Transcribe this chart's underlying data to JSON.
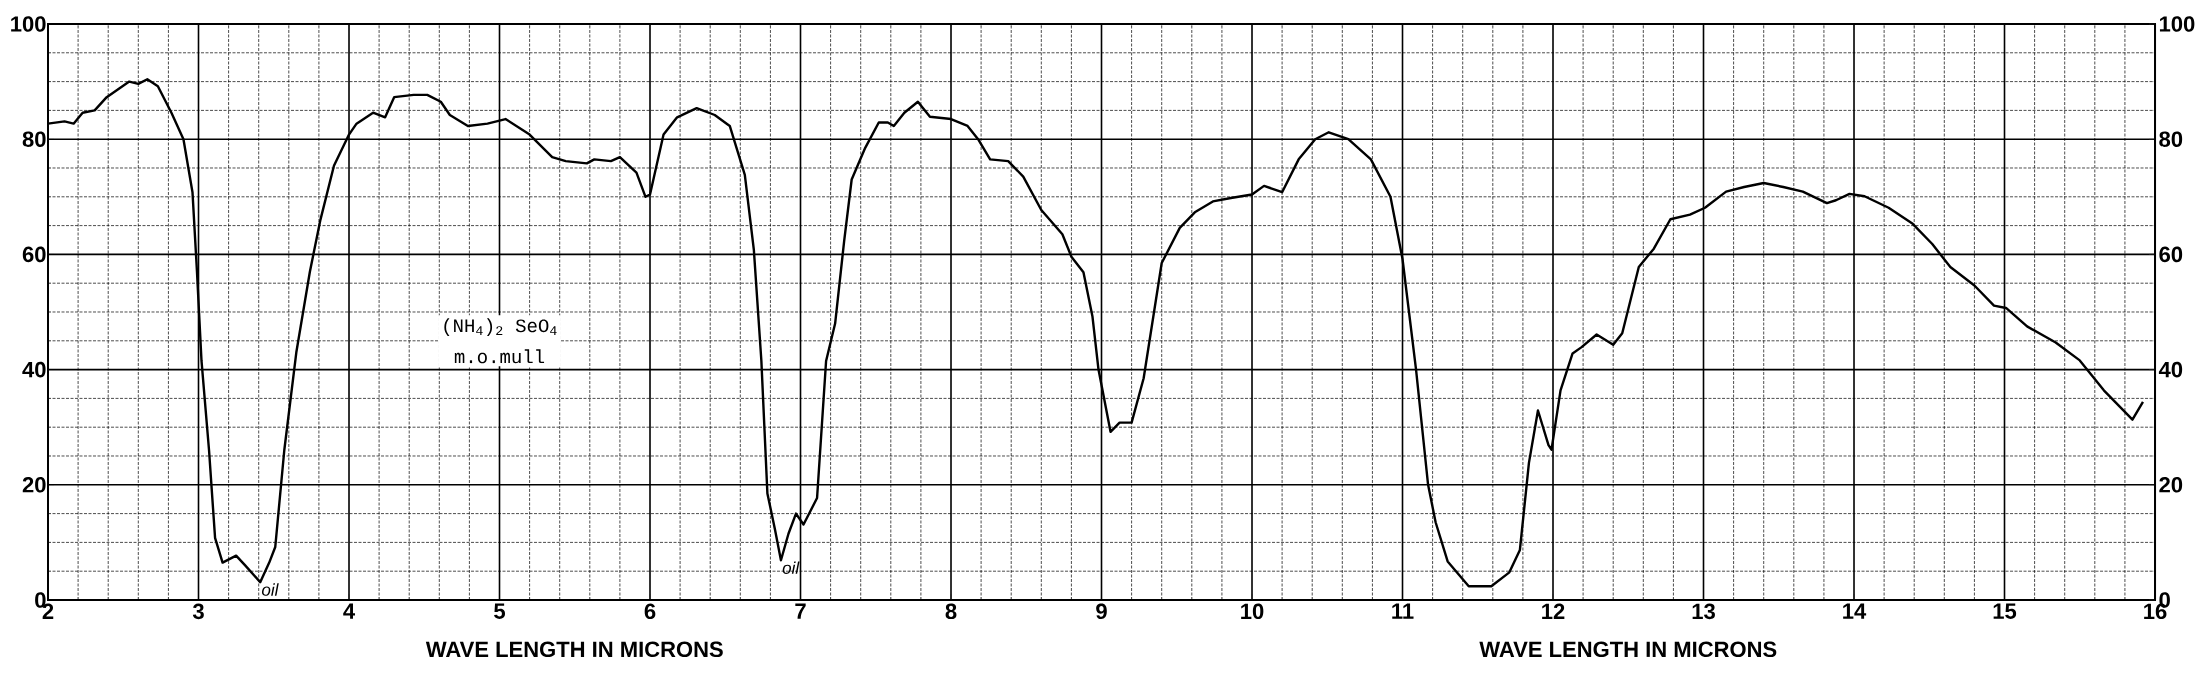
{
  "chart_data": {
    "type": "line",
    "xlabel": "WAVE LENGTH IN MICRONS",
    "annotations": [
      "(NH$_{4}$)$_{2}$ SeO$_{4}$",
      "m.o.mull",
      {
        "text": "oil",
        "x": 3.41,
        "y": 3.1
      },
      {
        "text": "oil",
        "x": 6.87,
        "y": 6.9
      }
    ],
    "series": [
      {
        "color": "#000000",
        "x": [
          2.0,
          2.11,
          2.17,
          2.23,
          2.31,
          2.39,
          2.54,
          2.6,
          2.66,
          2.73,
          2.82,
          2.9,
          2.96,
          2.99,
          3.02,
          3.07,
          3.11,
          3.16,
          3.25,
          3.31,
          3.41,
          3.47,
          3.51,
          3.57,
          3.65,
          3.74,
          3.81,
          3.9,
          4.0,
          4.05,
          4.16,
          4.24,
          4.3,
          4.43,
          4.52,
          4.61,
          4.67,
          4.79,
          4.92,
          5.04,
          5.2,
          5.35,
          5.44,
          5.58,
          5.63,
          5.74,
          5.8,
          5.91,
          5.97,
          6.0,
          6.09,
          6.18,
          6.31,
          6.43,
          6.53,
          6.63,
          6.69,
          6.74,
          6.78,
          6.83,
          6.87,
          6.92,
          6.97,
          7.02,
          7.11,
          7.17,
          7.23,
          7.29,
          7.34,
          7.43,
          7.52,
          7.58,
          7.62,
          7.69,
          7.78,
          7.86,
          8.0,
          8.11,
          8.18,
          8.26,
          8.38,
          8.48,
          8.6,
          8.74,
          8.8,
          8.88,
          8.94,
          8.98,
          9.06,
          9.12,
          9.2,
          9.28,
          9.4,
          9.52,
          9.62,
          9.74,
          9.86,
          10.0,
          10.08,
          10.2,
          10.31,
          10.42,
          10.51,
          10.64,
          10.79,
          10.92,
          11.0,
          11.09,
          11.17,
          11.22,
          11.3,
          11.44,
          11.59,
          11.71,
          11.78,
          11.84,
          11.9,
          11.97,
          11.99,
          12.05,
          12.13,
          12.19,
          12.29,
          12.4,
          12.46,
          12.57,
          12.67,
          12.78,
          12.91,
          13.01,
          13.15,
          13.27,
          13.4,
          13.53,
          13.66,
          13.82,
          13.88,
          13.97,
          14.07,
          14.23,
          14.39,
          14.52,
          14.64,
          14.8,
          14.93,
          15.01,
          15.15,
          15.34,
          15.5,
          15.66,
          15.85,
          15.92
        ],
        "values": [
          82.7,
          83.1,
          82.7,
          84.6,
          85,
          87.3,
          90,
          89.6,
          90.4,
          89.2,
          84.6,
          80,
          70.8,
          56.9,
          41.5,
          26,
          10.8,
          6.5,
          7.7,
          6,
          3.1,
          6.5,
          9.2,
          26,
          43,
          57,
          66,
          75.4,
          80.8,
          82.7,
          84.6,
          83.8,
          87.3,
          87.7,
          87.7,
          86.5,
          84.2,
          82.3,
          82.7,
          83.5,
          80.8,
          76.9,
          76.2,
          75.8,
          76.5,
          76.2,
          76.9,
          74.2,
          70,
          70.4,
          80.8,
          83.8,
          85.4,
          84.2,
          82.3,
          73.8,
          60.8,
          41.5,
          18.5,
          12.3,
          6.9,
          11.5,
          15,
          13.1,
          17.7,
          41.5,
          48,
          62.3,
          73,
          78.5,
          82.9,
          82.9,
          82.3,
          84.6,
          86.5,
          83.9,
          83.5,
          82.3,
          80,
          76.5,
          76.2,
          73.5,
          67.7,
          63.5,
          59.6,
          56.9,
          49.2,
          40,
          29.2,
          30.8,
          30.8,
          38.5,
          58.5,
          64.6,
          67.3,
          69.2,
          69.8,
          70.4,
          71.9,
          70.8,
          76.5,
          80,
          81.2,
          80,
          76.5,
          70,
          59.2,
          40,
          20,
          13.5,
          6.7,
          2.4,
          2.4,
          4.8,
          8.7,
          23.8,
          32.9,
          26.9,
          26.1,
          36.4,
          42.8,
          43.9,
          46.1,
          44.3,
          46.3,
          57.8,
          61,
          66.1,
          66.9,
          68.1,
          70.9,
          71.7,
          72.4,
          71.7,
          70.9,
          68.9,
          69.4,
          70.5,
          70.1,
          68.1,
          65.3,
          61.8,
          57.8,
          54.6,
          51.1,
          50.7,
          47.5,
          44.7,
          41.6,
          36.4,
          31.3,
          34.4
        ]
      }
    ],
    "xlim": [
      2,
      16
    ],
    "xticks": [
      2,
      3,
      4,
      5,
      6,
      7,
      8,
      9,
      10,
      11,
      12,
      13,
      14,
      15,
      16
    ],
    "ylim": [
      0,
      100
    ],
    "yticks": [
      0,
      20,
      40,
      60,
      80,
      100
    ],
    "y2lim": [
      0,
      100
    ],
    "y2ticks": [
      0,
      20,
      40,
      60,
      80,
      100
    ],
    "grid": true
  }
}
